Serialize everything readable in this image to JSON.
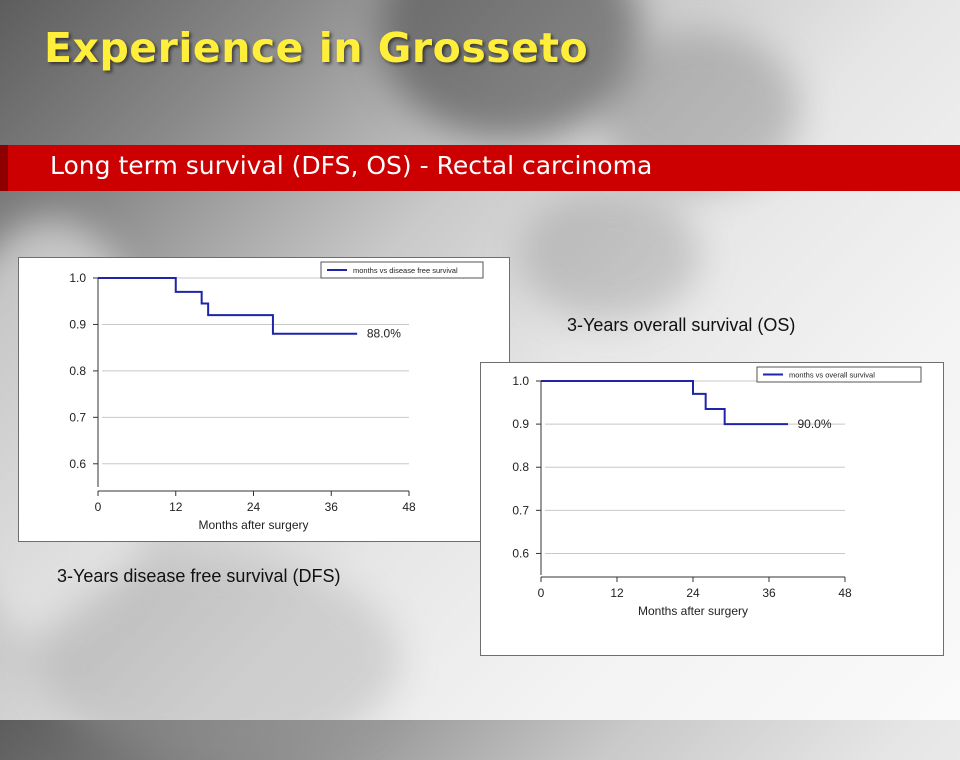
{
  "slide": {
    "title": "Experience in Grosseto",
    "banner": "Long term survival (DFS, OS) - Rectal carcinoma",
    "accent_color": "#cc0000",
    "title_color": "#ffef3a"
  },
  "chart_data": [
    {
      "type": "line",
      "title": "",
      "caption": "3-Years disease free survival (DFS)",
      "xlabel": "Months after surgery",
      "ylabel": "",
      "xlim": [
        0,
        48
      ],
      "ylim": [
        0.55,
        1.0
      ],
      "xticks": [
        "0",
        "12",
        "24",
        "36",
        "48"
      ],
      "yticks": [
        "1.0",
        "0.9",
        "0.8",
        "0.7",
        "0.6"
      ],
      "grid": true,
      "legend_position": "top-right",
      "series": [
        {
          "name": "months vs disease free survival",
          "color": "#1f24a8",
          "step": true,
          "x": [
            0,
            12,
            16,
            17,
            27,
            40
          ],
          "y": [
            1.0,
            0.97,
            0.945,
            0.92,
            0.88,
            0.88
          ]
        }
      ],
      "annotations": [
        {
          "text": "88.0%",
          "x": 41.5,
          "y": 0.88
        }
      ]
    },
    {
      "type": "line",
      "title": "",
      "caption": "3-Years overall survival (OS)",
      "xlabel": "Months after surgery",
      "ylabel": "",
      "xlim": [
        0,
        48
      ],
      "ylim": [
        0.55,
        1.0
      ],
      "xticks": [
        "0",
        "12",
        "24",
        "36",
        "48"
      ],
      "yticks": [
        "1.0",
        "0.9",
        "0.8",
        "0.7",
        "0.6"
      ],
      "grid": true,
      "legend_position": "top-right",
      "series": [
        {
          "name": "months vs overall survival",
          "color": "#1f24a8",
          "step": true,
          "x": [
            0,
            24,
            26,
            29,
            39
          ],
          "y": [
            1.0,
            0.97,
            0.935,
            0.9,
            0.9
          ]
        }
      ],
      "annotations": [
        {
          "text": "90.0%",
          "x": 40.5,
          "y": 0.9
        }
      ]
    }
  ]
}
